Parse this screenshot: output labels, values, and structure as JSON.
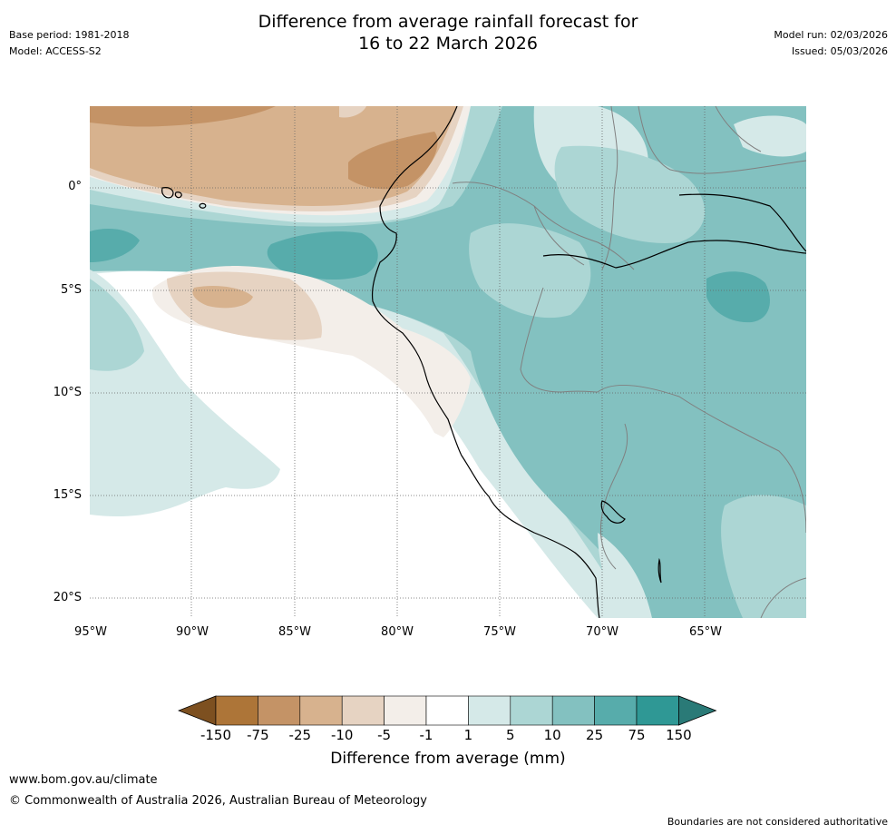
{
  "header": {
    "title_line1": "Difference from average rainfall forecast for",
    "title_line2": "16 to 22 March 2026",
    "base_period": "Base period: 1981-2018",
    "model": "Model: ACCESS-S2",
    "model_run": "Model run: 02/03/2026",
    "issued": "Issued: 05/03/2026"
  },
  "map": {
    "lat_labels": [
      "0°",
      "5°S",
      "10°S",
      "15°S",
      "20°S"
    ],
    "lon_labels": [
      "95°W",
      "90°W",
      "85°W",
      "80°W",
      "75°W",
      "70°W",
      "65°W"
    ]
  },
  "colorbar": {
    "title": "Difference from average (mm)",
    "labels": [
      "-150",
      "-75",
      "-25",
      "-10",
      "-5",
      "-1",
      "1",
      "5",
      "10",
      "25",
      "75",
      "150"
    ],
    "colors": [
      "#7d5020",
      "#ad7538",
      "#c49366",
      "#d7b28e",
      "#e6d3c2",
      "#f3eee9",
      "#ffffff",
      "#d5e9e8",
      "#acd6d4",
      "#83c1c0",
      "#57acab",
      "#2f9895",
      "#2a7a77"
    ]
  },
  "footer": {
    "url": "www.bom.gov.au/climate",
    "copyright": "© Commonwealth of Australia 2026, Australian Bureau of Meteorology",
    "disclaimer": "Boundaries are not considered authoritative"
  }
}
